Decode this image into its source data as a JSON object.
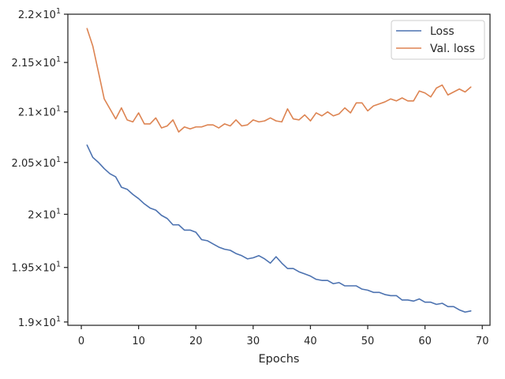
{
  "chart_data": {
    "type": "line",
    "title": "",
    "xlabel": "Epochs",
    "ylabel": "",
    "xlim": [
      -2.35,
      71.35
    ],
    "ylim": [
      18.97,
      22.0
    ],
    "y_scale": "log",
    "grid": false,
    "legend_position": "top-right",
    "x_ticks": [
      0,
      10,
      20,
      30,
      40,
      50,
      60,
      70
    ],
    "y_ticks": [
      {
        "value": 19.0,
        "mantissa": "1.9"
      },
      {
        "value": 19.5,
        "mantissa": "1.95"
      },
      {
        "value": 20.0,
        "mantissa": "2"
      },
      {
        "value": 20.5,
        "mantissa": "2.05"
      },
      {
        "value": 21.0,
        "mantissa": "2.1"
      },
      {
        "value": 21.5,
        "mantissa": "2.15"
      },
      {
        "value": 22.0,
        "mantissa": "2.2"
      }
    ],
    "tick_base": "10",
    "tick_exponent": "1",
    "tick_times": "×",
    "x": [
      1,
      2,
      3,
      4,
      5,
      6,
      7,
      8,
      9,
      10,
      11,
      12,
      13,
      14,
      15,
      16,
      17,
      18,
      19,
      20,
      21,
      22,
      23,
      24,
      25,
      26,
      27,
      28,
      29,
      30,
      31,
      32,
      33,
      34,
      35,
      36,
      37,
      38,
      39,
      40,
      41,
      42,
      43,
      44,
      45,
      46,
      47,
      48,
      49,
      50,
      51,
      52,
      53,
      54,
      55,
      56,
      57,
      58,
      59,
      60,
      61,
      62,
      63,
      64,
      65,
      66,
      67,
      68
    ],
    "series": [
      {
        "name": "Loss",
        "color": "#4c72b0",
        "values": [
          20.67,
          20.55,
          20.5,
          20.44,
          20.39,
          20.36,
          20.26,
          20.24,
          20.19,
          20.15,
          20.1,
          20.06,
          20.04,
          19.99,
          19.96,
          19.9,
          19.9,
          19.85,
          19.85,
          19.83,
          19.76,
          19.75,
          19.72,
          19.69,
          19.67,
          19.66,
          19.63,
          19.61,
          19.58,
          19.59,
          19.61,
          19.58,
          19.54,
          19.6,
          19.54,
          19.49,
          19.49,
          19.46,
          19.44,
          19.42,
          19.39,
          19.38,
          19.38,
          19.35,
          19.36,
          19.33,
          19.33,
          19.33,
          19.3,
          19.29,
          19.27,
          19.27,
          19.25,
          19.24,
          19.24,
          19.2,
          19.2,
          19.19,
          19.21,
          19.18,
          19.18,
          19.16,
          19.17,
          19.14,
          19.14,
          19.11,
          19.09,
          19.1
        ]
      },
      {
        "name": "Val. loss",
        "color": "#dd8452",
        "values": [
          21.85,
          21.67,
          21.4,
          21.13,
          21.03,
          20.93,
          21.04,
          20.92,
          20.9,
          20.99,
          20.88,
          20.88,
          20.94,
          20.84,
          20.86,
          20.92,
          20.8,
          20.85,
          20.83,
          20.85,
          20.85,
          20.87,
          20.87,
          20.84,
          20.88,
          20.86,
          20.92,
          20.86,
          20.87,
          20.92,
          20.9,
          20.91,
          20.94,
          20.91,
          20.9,
          21.03,
          20.93,
          20.92,
          20.97,
          20.91,
          20.99,
          20.96,
          21.0,
          20.96,
          20.98,
          21.04,
          20.99,
          21.09,
          21.09,
          21.01,
          21.06,
          21.08,
          21.1,
          21.13,
          21.11,
          21.14,
          21.11,
          21.11,
          21.21,
          21.19,
          21.15,
          21.24,
          21.27,
          21.17,
          21.2,
          21.23,
          21.2,
          21.25
        ]
      }
    ]
  }
}
